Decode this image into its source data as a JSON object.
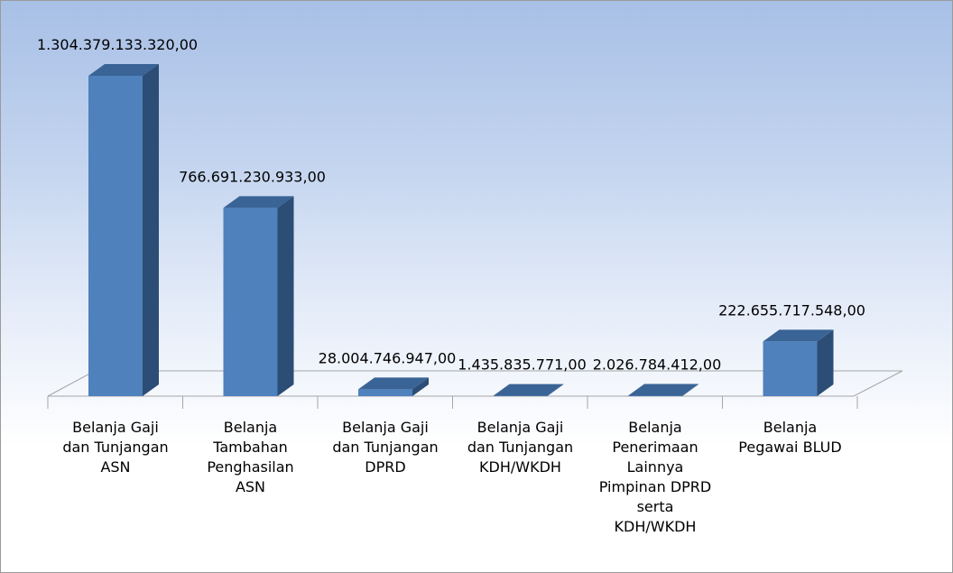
{
  "chart_data": {
    "type": "bar",
    "style": "3d-column",
    "categories": [
      [
        "Belanja Gaji",
        "dan Tunjangan",
        "ASN"
      ],
      [
        "Belanja",
        "Tambahan",
        "Penghasilan",
        "ASN"
      ],
      [
        "Belanja Gaji",
        "dan Tunjangan",
        "DPRD"
      ],
      [
        "Belanja Gaji",
        "dan Tunjangan",
        "KDH/WKDH"
      ],
      [
        "Belanja",
        "Penerimaan",
        "Lainnya",
        "Pimpinan DPRD",
        "serta",
        "KDH/WKDH"
      ],
      [
        "Belanja",
        "Pegawai BLUD"
      ]
    ],
    "values": [
      1304379133320,
      766691230933,
      28004746947,
      1435835771,
      2026784412,
      222655717548
    ],
    "data_labels": [
      "1.304.379.133.320,00",
      "766.691.230.933,00",
      "28.004.746.947,00",
      "1.435.835.771,00",
      "2.026.784.412,00",
      "222.655.717.548,00"
    ],
    "title": "",
    "xlabel": "",
    "ylabel": "",
    "ylim": [
      0,
      1304379133320
    ],
    "grid": false,
    "legend": "none",
    "colors": {
      "bar_front": "#4f81bd",
      "bar_side": "#2c4d75",
      "bar_top": "#3a6496"
    }
  }
}
